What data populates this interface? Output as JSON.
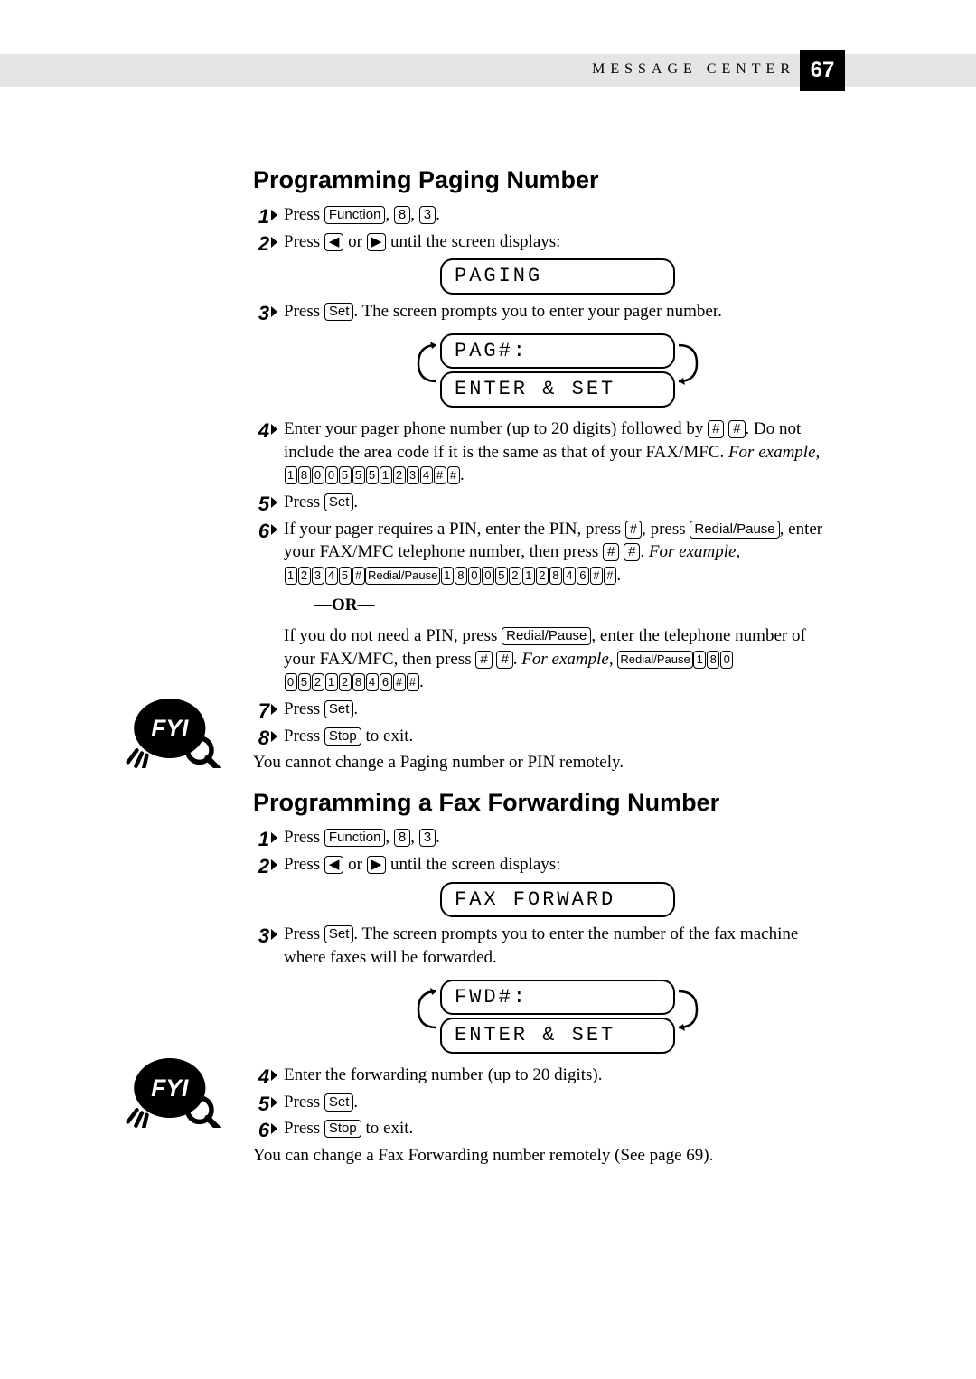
{
  "header": {
    "section_label": "MESSAGE CENTER",
    "page_number": "67"
  },
  "buttons": {
    "function": "Function",
    "set": "Set",
    "stop": "Stop",
    "redial_pause": "Redial/Pause",
    "hash": "#",
    "left": "◀",
    "right": "▶"
  },
  "lcd": {
    "paging": "PAGING",
    "pag_num": "PAG#:",
    "enter_set": "ENTER & SET",
    "fax_forward": "FAX FORWARD",
    "fwd_num": "FWD#:"
  },
  "section1": {
    "title": "Programming Paging Number",
    "step1_a": "Press ",
    "step1_b": ", ",
    "step1_c": ", ",
    "step1_d": ".",
    "step1_k1": "8",
    "step1_k2": "3",
    "step2_a": "Press ",
    "step2_b": " or ",
    "step2_c": " until the screen displays:",
    "step3_a": "Press ",
    "step3_b": ".  The screen prompts you to enter your pager number.",
    "step4_a": "Enter your pager phone number (up to 20 digits) followed by ",
    "step4_b": ".  Do not include the area code if it is the same as that of your FAX/MFC.  ",
    "step4_c": "For example,",
    "step4_seq": [
      "1",
      "8",
      "0",
      "0",
      "5",
      "5",
      "5",
      "1",
      "2",
      "3",
      "4",
      "#",
      "#"
    ],
    "step5_a": "Press ",
    "step5_b": ".",
    "step6_a": "If your pager requires a PIN, enter the PIN, press ",
    "step6_b": ", press ",
    "step6_c": ", enter your FAX/MFC telephone number, then press ",
    "step6_d": ".  ",
    "step6_e": "For example,",
    "step6_seqA": [
      "1",
      "2",
      "3",
      "4",
      "5",
      "#"
    ],
    "step6_seqB": [
      "1",
      "8",
      "0",
      "0",
      "5",
      "2",
      "1",
      "2",
      "8",
      "4",
      "6",
      "#",
      "#"
    ],
    "or_label": "—OR—",
    "step6_alt_a": "If you do not need a PIN, press ",
    "step6_alt_b": ", enter the telephone number of your FAX/MFC, then press ",
    "step6_alt_c": ".  ",
    "step6_alt_d": "For example, ",
    "step6_alt_seqA": [
      "1",
      "8",
      "0"
    ],
    "step6_alt_seqB": [
      "0",
      "5",
      "2",
      "1",
      "2",
      "8",
      "4",
      "6",
      "#",
      "#"
    ],
    "step7_a": "Press ",
    "step7_b": ".",
    "step8_a": "Press ",
    "step8_b": " to exit.",
    "note": "You cannot change a Paging number or PIN remotely."
  },
  "section2": {
    "title": "Programming a Fax Forwarding Number",
    "step1_a": "Press ",
    "step1_b": ", ",
    "step1_c": ", ",
    "step1_d": ".",
    "step1_k1": "8",
    "step1_k2": "3",
    "step2_a": "Press ",
    "step2_b": " or ",
    "step2_c": " until the screen displays:",
    "step3_a": "Press ",
    "step3_b": ".  The screen prompts you to enter the number of the fax machine where faxes will be forwarded.",
    "step4": "Enter the forwarding number (up to 20 digits).",
    "step5_a": "Press ",
    "step5_b": ".",
    "step6_a": "Press ",
    "step6_b": " to exit.",
    "note": "You can change a Fax Forwarding number remotely (See page 69)."
  },
  "style": {
    "accent": "#000000",
    "band": "#e5e5e5",
    "lcd_font": "monospace"
  }
}
